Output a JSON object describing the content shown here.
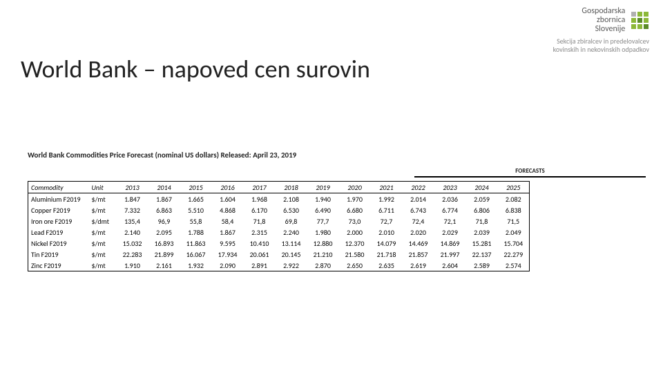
{
  "logo": {
    "line1": "Gospodarska",
    "line2": "zbornica",
    "line3": "Slovenije",
    "sub": "Sekcija zbiralcev in predelovalcev kovinskih in nekovinskih odpadkov"
  },
  "title": "World Bank – napoved cen surovin",
  "subtitle": "World Bank Commodities Price Forecast (nominal US dollars) Released: April 23, 2019",
  "forecasts_label": "FORECASTS",
  "table": {
    "headers": [
      "Commodity",
      "Unit",
      "2013",
      "2014",
      "2015",
      "2016",
      "2017",
      "2018",
      "2019",
      "2020",
      "2021",
      "2022",
      "2023",
      "2024",
      "2025"
    ],
    "rows": [
      [
        "Aluminium F2019",
        "$/mt",
        "1.847",
        "1.867",
        "1.665",
        "1.604",
        "1.968",
        "2.108",
        "1.940",
        "1.970",
        "1.992",
        "2.014",
        "2.036",
        "2.059",
        "2.082"
      ],
      [
        "Copper F2019",
        "$/mt",
        "7.332",
        "6.863",
        "5.510",
        "4.868",
        "6.170",
        "6.530",
        "6.490",
        "6.680",
        "6.711",
        "6.743",
        "6.774",
        "6.806",
        "6.838"
      ],
      [
        "Iron ore F2019",
        "$/dmt",
        "135,4",
        "96,9",
        "55,8",
        "58,4",
        "71,8",
        "69,8",
        "77,7",
        "73,0",
        "72,7",
        "72,4",
        "72,1",
        "71,8",
        "71,5"
      ],
      [
        "Lead F2019",
        "$/mt",
        "2.140",
        "2.095",
        "1.788",
        "1.867",
        "2.315",
        "2.240",
        "1.980",
        "2.000",
        "2.010",
        "2.020",
        "2.029",
        "2.039",
        "2.049"
      ],
      [
        "Nickel F2019",
        "$/mt",
        "15.032",
        "16.893",
        "11.863",
        "9.595",
        "10.410",
        "13.114",
        "12.880",
        "12.370",
        "14.079",
        "14.469",
        "14.869",
        "15.281",
        "15.704"
      ],
      [
        "Tin F2019",
        "$/mt",
        "22.283",
        "21.899",
        "16.067",
        "17.934",
        "20.061",
        "20.145",
        "21.210",
        "21.580",
        "21.718",
        "21.857",
        "21.997",
        "22.137",
        "22.279"
      ],
      [
        "Zinc F2019",
        "$/mt",
        "1.910",
        "2.161",
        "1.932",
        "2.090",
        "2.891",
        "2.922",
        "2.870",
        "2.650",
        "2.635",
        "2.619",
        "2.604",
        "2.589",
        "2.574"
      ]
    ]
  }
}
